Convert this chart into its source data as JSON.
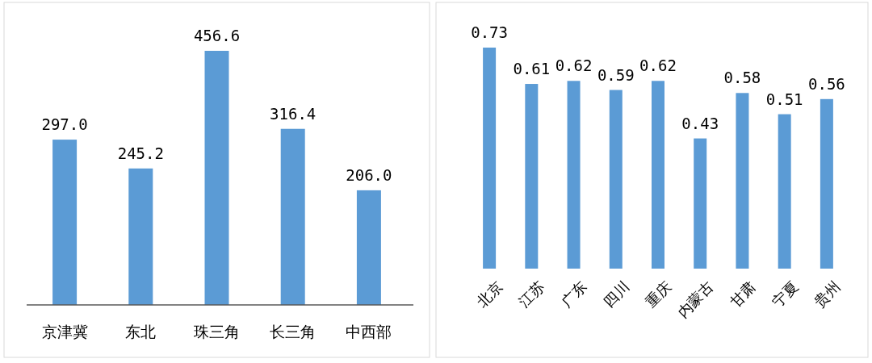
{
  "chart_data": [
    {
      "type": "bar",
      "categories": [
        "京津冀",
        "东北",
        "珠三角",
        "长三角",
        "中西部"
      ],
      "values": [
        297.0,
        245.2,
        456.6,
        316.4,
        206.0
      ],
      "value_labels": [
        "297.0",
        "245.2",
        "456.6",
        "316.4",
        "206.0"
      ],
      "color": "#5b9bd5"
    },
    {
      "type": "bar",
      "categories": [
        "北京",
        "江苏",
        "广东",
        "四川",
        "重庆",
        "内蒙古",
        "甘肃",
        "宁夏",
        "贵州"
      ],
      "values": [
        0.73,
        0.61,
        0.62,
        0.59,
        0.62,
        0.43,
        0.58,
        0.51,
        0.56
      ],
      "value_labels": [
        "0.73",
        "0.61",
        "0.62",
        "0.59",
        "0.62",
        "0.43",
        "0.58",
        "0.51",
        "0.56"
      ],
      "color": "#5b9bd5"
    }
  ]
}
